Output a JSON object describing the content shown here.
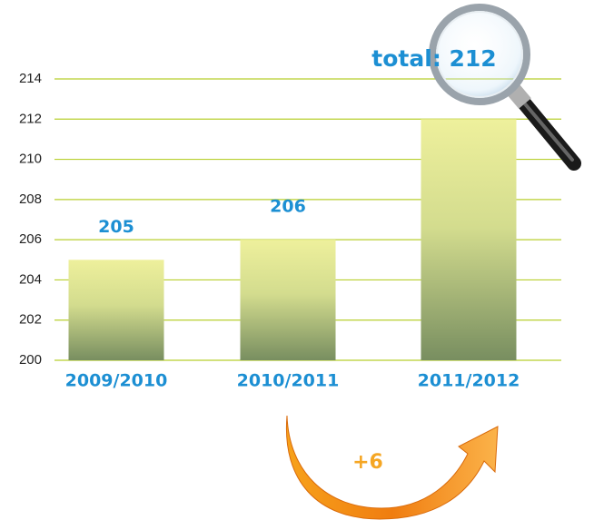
{
  "chart_data": {
    "type": "bar",
    "categories": [
      "2009/2010",
      "2010/2011",
      "2011/2012"
    ],
    "values": [
      205,
      206,
      212
    ],
    "value_labels": [
      "205",
      "206",
      "total: 212"
    ],
    "color": "#eef09c",
    "ylim": [
      200,
      214
    ],
    "yticks": [
      200,
      202,
      204,
      206,
      208,
      210,
      212,
      214
    ],
    "grid": true,
    "annotation": "+6"
  }
}
